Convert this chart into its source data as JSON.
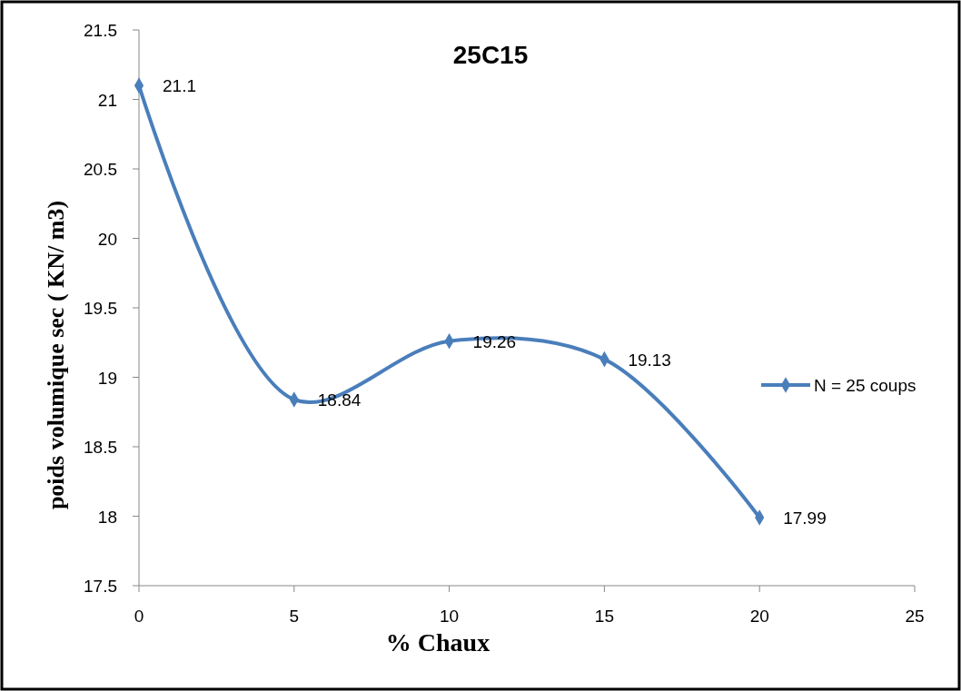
{
  "chart_data": {
    "type": "line",
    "title": "25C15",
    "xlabel": "% Chaux",
    "ylabel": "poids volumique sec ( KN/ m3)",
    "x": [
      0,
      5,
      10,
      15,
      20
    ],
    "series": [
      {
        "name": "N = 25 coups",
        "color": "#4a7ebb",
        "values": [
          21.1,
          18.84,
          19.26,
          19.13,
          17.99
        ]
      }
    ],
    "xlim": [
      0,
      25
    ],
    "xticks": [
      0,
      5,
      10,
      15,
      20,
      25
    ],
    "ylim": [
      17.5,
      21.5
    ],
    "yticks": [
      17.5,
      18,
      18.5,
      19,
      19.5,
      20,
      20.5,
      21,
      21.5
    ],
    "grid": false,
    "legend": "right",
    "marker": "diamond",
    "line_style": "solid",
    "data_labels": true
  }
}
